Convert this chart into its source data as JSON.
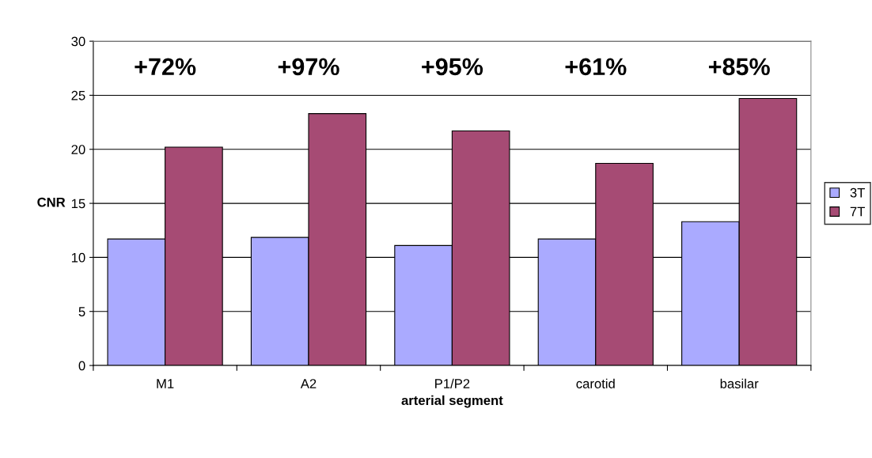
{
  "chart_data": {
    "type": "bar",
    "xlabel": "arterial segment",
    "ylabel": "CNR",
    "categories": [
      "M1",
      "A2",
      "P1/P2",
      "carotid",
      "basilar"
    ],
    "series": [
      {
        "name": "3T",
        "color": "#aaaaff",
        "values": [
          11.7,
          11.85,
          11.1,
          11.7,
          13.3
        ]
      },
      {
        "name": "7T",
        "color": "#a64b74",
        "values": [
          20.2,
          23.3,
          21.7,
          18.7,
          24.7
        ]
      }
    ],
    "ylim": [
      0,
      30
    ],
    "yticks": [
      0,
      5,
      10,
      15,
      20,
      25,
      30
    ],
    "grid": "y",
    "legend": "right",
    "annotations": [
      "+72%",
      "+97%",
      "+95%",
      "+61%",
      "+85%"
    ]
  }
}
